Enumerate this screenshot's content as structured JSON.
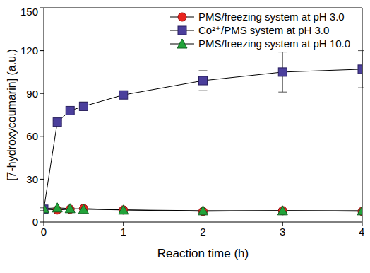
{
  "chart_data": {
    "type": "line",
    "x_label": "Reaction time (h)",
    "y_label": "[7-hydroxycoumarin] (a.u.)",
    "x": [
      0,
      0.17,
      0.33,
      0.5,
      1,
      2,
      3,
      4
    ],
    "xlim": [
      0,
      4
    ],
    "xticks": [
      0,
      1,
      2,
      3,
      4
    ],
    "ylim": [
      0,
      150
    ],
    "yticks": [
      0,
      30,
      60,
      90,
      120,
      150
    ],
    "grid": false,
    "legend": "upper right",
    "series": [
      {
        "name": "PMS/freezing system at pH 3.0",
        "color": "#e8251f",
        "marker": "circle",
        "values": [
          9,
          8.5,
          9,
          9.5,
          8.5,
          7.5,
          8,
          7.5
        ]
      },
      {
        "name": "Co²⁺/PMS system at pH 3.0",
        "color": "#4b3f9c",
        "marker": "square",
        "values": [
          9,
          70,
          78,
          81,
          89,
          99,
          105,
          107
        ],
        "errors": [
          1,
          1,
          2,
          3,
          2,
          7,
          14,
          13
        ]
      },
      {
        "name": "PMS/freezing system at pH 10.0",
        "color": "#22a33a",
        "marker": "triangle",
        "values": [
          9.5,
          10,
          9.5,
          9,
          8.5,
          8,
          8,
          8
        ]
      }
    ]
  }
}
